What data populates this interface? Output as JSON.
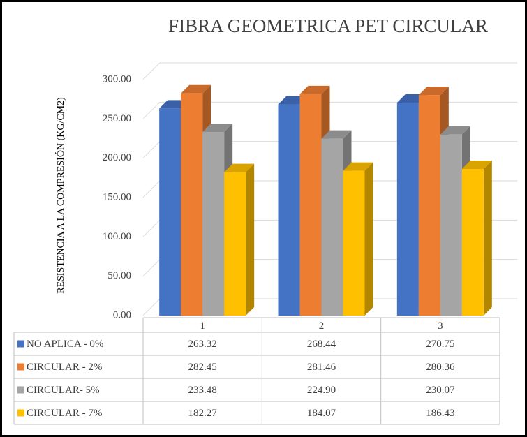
{
  "chart_data": {
    "type": "bar3d",
    "title": "FIBRA GEOMETRICA PET CIRCULAR",
    "y_label": "RESISTENCIA A LA COMPRESIÓN (KG/CM2)",
    "categories": [
      "1",
      "2",
      "3"
    ],
    "series": [
      {
        "name": "NO APLICA - 0%",
        "color": "#4472c4",
        "values": [
          263.32,
          268.44,
          270.75
        ],
        "value_labels": [
          "263.32",
          "268.44",
          "270.75"
        ]
      },
      {
        "name": "CIRCULAR - 2%",
        "color": "#ed7d31",
        "values": [
          282.45,
          281.46,
          280.36
        ],
        "value_labels": [
          "282.45",
          "281.46",
          "280.36"
        ]
      },
      {
        "name": "CIRCULAR- 5%",
        "color": "#a5a5a5",
        "values": [
          233.48,
          224.9,
          230.07
        ],
        "value_labels": [
          "233.48",
          "224.90",
          "230.07"
        ]
      },
      {
        "name": "CIRCULAR - 7%",
        "color": "#ffc000",
        "values": [
          182.27,
          184.07,
          186.43
        ],
        "value_labels": [
          "182.27",
          "184.07",
          "186.43"
        ]
      }
    ],
    "ylim": [
      0,
      300
    ],
    "yticks": [
      {
        "value": 0,
        "label": "0.00"
      },
      {
        "value": 50,
        "label": "50.00"
      },
      {
        "value": 100,
        "label": "100.00"
      },
      {
        "value": 150,
        "label": "150.00"
      },
      {
        "value": 200,
        "label": "200.00"
      },
      {
        "value": 250,
        "label": "250.00"
      },
      {
        "value": 300,
        "label": "300.00"
      }
    ],
    "grid": true
  }
}
